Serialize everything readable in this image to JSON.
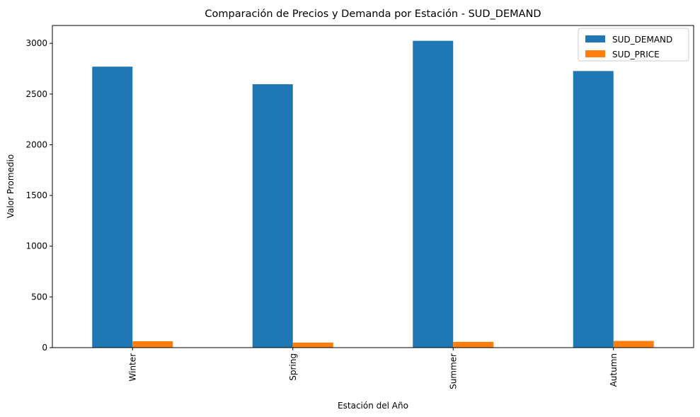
{
  "chart_data": {
    "type": "bar",
    "title": "Comparación de Precios y Demanda por Estación - SUD_DEMAND",
    "xlabel": "Estación del Año",
    "ylabel": "Valor Promedio",
    "categories": [
      "Winter",
      "Spring",
      "Summer",
      "Autumn"
    ],
    "series": [
      {
        "name": "SUD_DEMAND",
        "color": "#1f77b4",
        "values": [
          2770,
          2597,
          3025,
          2727
        ]
      },
      {
        "name": "SUD_PRICE",
        "color": "#ff7f0e",
        "values": [
          63,
          50,
          57,
          66
        ]
      }
    ],
    "ylim": [
      0,
      3176
    ],
    "yticks": [
      0,
      500,
      1000,
      1500,
      2000,
      2500,
      3000
    ],
    "grid": false,
    "legend_position": "top-right"
  }
}
